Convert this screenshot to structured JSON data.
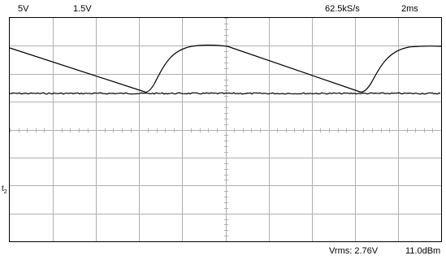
{
  "header": {
    "ch1_scale": "5V",
    "ch2_scale": "1.5V",
    "sample_rate": "62.5kS/s",
    "timebase": "2ms"
  },
  "footer": {
    "vrms": "Vrms: 2.76V",
    "dbm": "11.0dBm"
  },
  "markers": {
    "ch2_marker": "t",
    "ch2_marker_sub": "2"
  },
  "colors": {
    "background": "#ffffff",
    "grid": "#b0b0b0",
    "trace": "#000000",
    "border": "#000000"
  }
}
